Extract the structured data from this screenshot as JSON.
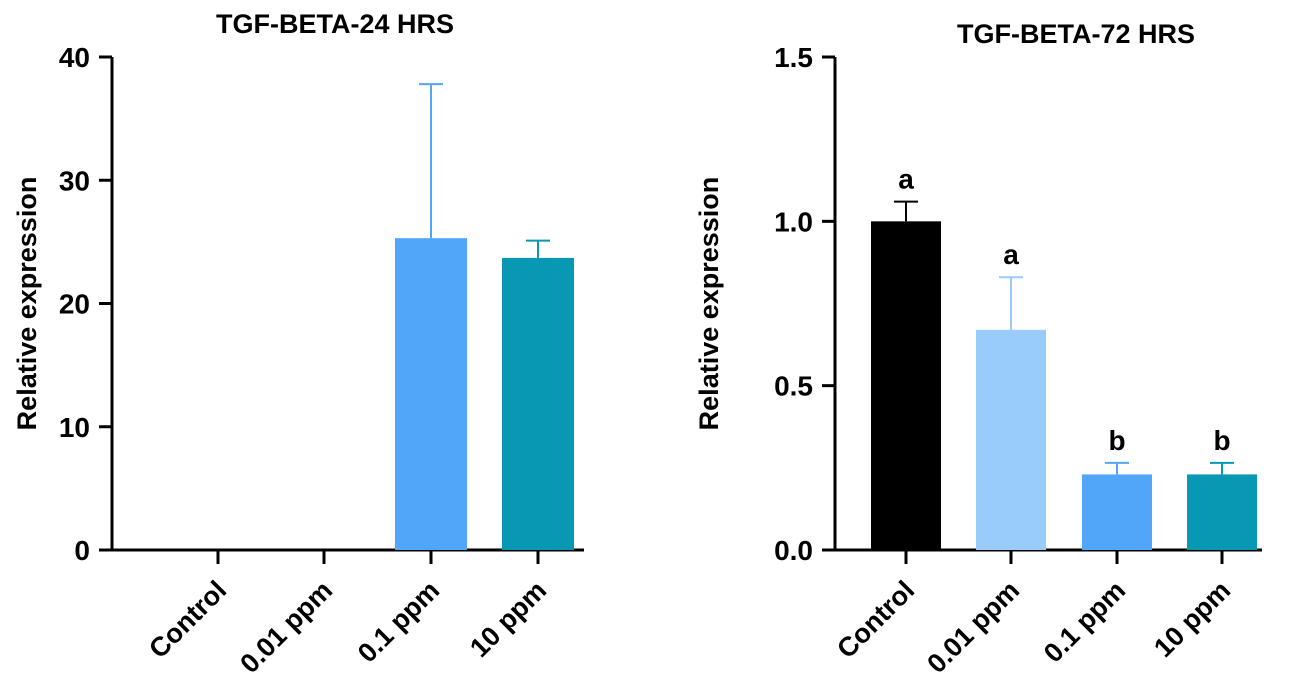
{
  "chart_data": [
    {
      "type": "bar",
      "title": "TGF-BETA-24 HRS",
      "xlabel": "",
      "ylabel": "Relative expression",
      "ylim": [
        0,
        40
      ],
      "yticks": [
        "0",
        "10",
        "20",
        "30",
        "40"
      ],
      "categories": [
        "Control",
        "0.01 ppm",
        "0.1 ppm",
        "10 ppm"
      ],
      "values": [
        0,
        0,
        25.3,
        23.7
      ],
      "error_upper": [
        0,
        0,
        37.8,
        25.1
      ],
      "annotations": [
        "",
        "",
        "",
        ""
      ],
      "colors": [
        "#000000",
        "#99ccfa",
        "#52a6fa",
        "#0898b4"
      ]
    },
    {
      "type": "bar",
      "title": "TGF-BETA-72 HRS",
      "xlabel": "",
      "ylabel": "Relative expression",
      "ylim": [
        0,
        1.5
      ],
      "yticks": [
        "0.0",
        "0.5",
        "1.0",
        "1.5"
      ],
      "categories": [
        "Control",
        "0.01 ppm",
        "0.1 ppm",
        "10 ppm"
      ],
      "values": [
        1.0,
        0.67,
        0.23,
        0.23
      ],
      "error_upper": [
        1.06,
        0.83,
        0.265,
        0.265
      ],
      "annotations": [
        "a",
        "a",
        "b",
        "b"
      ],
      "colors": [
        "#000000",
        "#99ccfa",
        "#52a6fa",
        "#0898b4"
      ]
    }
  ]
}
